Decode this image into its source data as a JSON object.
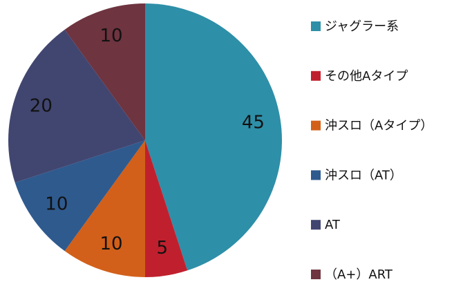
{
  "chart_data": {
    "type": "pie",
    "categories": [
      "ジャグラー系",
      "その他Aタイプ",
      "沖スロ（Aタイプ）",
      "沖スロ（AT）",
      "AT",
      "（A+）ART"
    ],
    "values": [
      45,
      5,
      10,
      10,
      20,
      10
    ],
    "colors": [
      "#2e8fa8",
      "#c0202e",
      "#d2601a",
      "#2f5a8e",
      "#414670",
      "#6e3440"
    ],
    "legend": "right"
  }
}
